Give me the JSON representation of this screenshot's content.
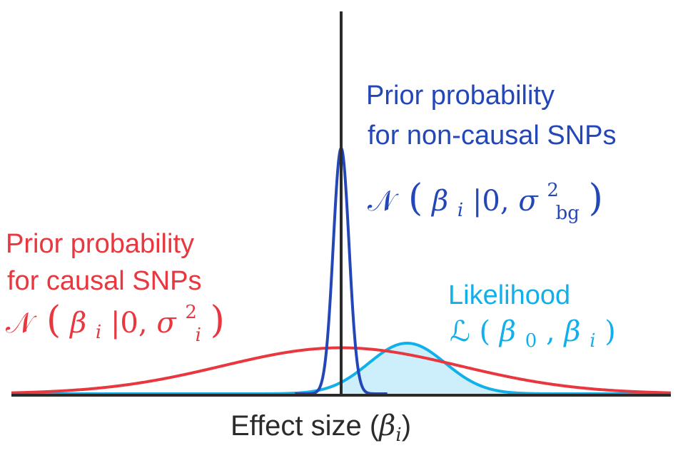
{
  "colors": {
    "axis": "#2b2b2b",
    "causal_prior": "#e8373f",
    "noncausal_prior": "#2447b8",
    "likelihood": "#12b0ea",
    "likelihood_fill": "#cdeffb"
  },
  "labels": {
    "noncausal": {
      "line1": "Prior probability",
      "line2": "for non-causal SNPs"
    },
    "causal": {
      "line1": "Prior probability",
      "line2": "for causal SNPs"
    },
    "likelihood": {
      "title": "Likelihood"
    },
    "xlabel": {
      "text": "Effect size (",
      "symbol": "β",
      "subscript": "i",
      "close": ")"
    }
  },
  "formulas": {
    "noncausal": {
      "dist": "𝒩",
      "open": "(",
      "var": "β",
      "var_sub": "i",
      "cond": "|0, ",
      "sigma": "σ",
      "sigma_sub": "bg",
      "sigma_sup": "2",
      "close": ")"
    },
    "causal": {
      "dist": "𝒩",
      "open": "(",
      "var": "β",
      "var_sub": "i",
      "cond": "|0, ",
      "sigma": "σ",
      "sigma_sub": "i",
      "sigma_sup": "2",
      "close": ")"
    },
    "likelihood": {
      "func": "ℒ",
      "open": "(",
      "a": "β",
      "a_sub": "0",
      "sep": ", ",
      "b": "β",
      "b_sub": "i",
      "close": ")"
    }
  },
  "curves": {
    "noncausal_prior": {
      "mean": 0,
      "sd": 0.06,
      "peak": 0.8
    },
    "causal_prior": {
      "mean": 0,
      "sd": 0.9,
      "peak": 0.15
    },
    "likelihood": {
      "mean": 0.5,
      "sd": 0.29,
      "peak": 0.165
    }
  },
  "axes": {
    "xlim": [
      -2.5,
      2.5
    ],
    "ylim": [
      0,
      1
    ]
  }
}
